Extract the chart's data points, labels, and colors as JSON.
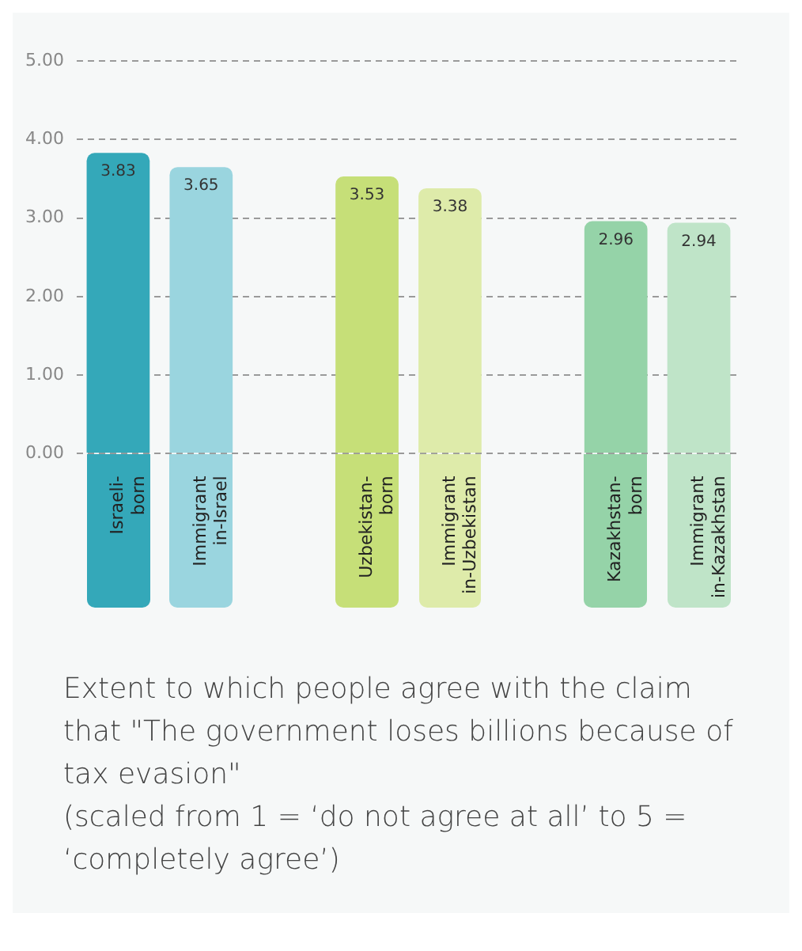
{
  "chart_data": {
    "type": "bar",
    "title": "Extent to which people agree with the claim that \"The government loses billions because of tax evasion\"",
    "subtitle": "(scaled from 1 = ‘do not agree at all’ to 5 = ‘completely agree’)",
    "categories": [
      "Israeli-born",
      "Immigrant in-Israel",
      null,
      "Uzbekistan-born",
      "Immigrant in-Uzbekistan",
      null,
      "Kazakhstan-born",
      "Immigrant in-Kazakhstan"
    ],
    "values": [
      3.83,
      3.65,
      null,
      3.53,
      3.38,
      null,
      2.96,
      2.94
    ],
    "colors": [
      "#34a8b9",
      "#9ad5df",
      "#ffffff",
      "#c6df78",
      "#deebaa",
      "#ffffff",
      "#95d3a8",
      "#bfe4c8"
    ],
    "ylim": [
      0,
      5
    ],
    "yticks": [
      {
        "value": 0,
        "label": "0.00"
      },
      {
        "value": 1,
        "label": "1.00"
      },
      {
        "value": 2,
        "label": "2.00"
      },
      {
        "value": 3,
        "label": "3.00"
      },
      {
        "value": 4,
        "label": "4.00"
      },
      {
        "value": 5,
        "label": "5.00"
      }
    ],
    "grid": "y",
    "data_labels": true,
    "legend": false
  }
}
